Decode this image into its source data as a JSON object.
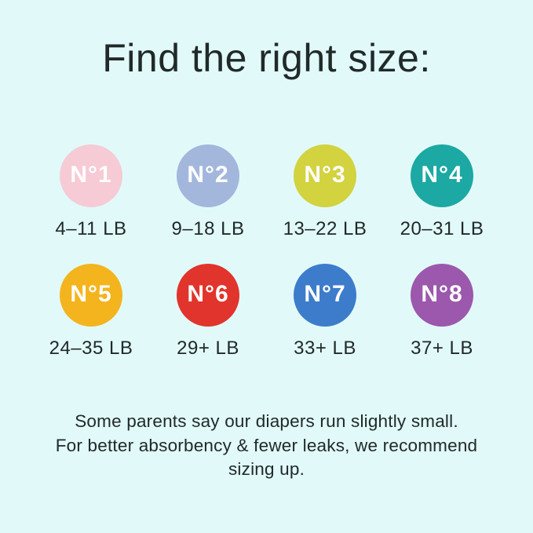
{
  "title": "Find the right size:",
  "sizes": [
    {
      "label": "N°1",
      "weight": "4–11 LB",
      "color": "#f6cbd5"
    },
    {
      "label": "N°2",
      "weight": "9–18 LB",
      "color": "#a3b7dd"
    },
    {
      "label": "N°3",
      "weight": "13–22 LB",
      "color": "#d3d23f"
    },
    {
      "label": "N°4",
      "weight": "20–31 LB",
      "color": "#1ca8a3"
    },
    {
      "label": "N°5",
      "weight": "24–35 LB",
      "color": "#f4b41e"
    },
    {
      "label": "N°6",
      "weight": "29+ LB",
      "color": "#e1342c"
    },
    {
      "label": "N°7",
      "weight": "33+ LB",
      "color": "#3c7cca"
    },
    {
      "label": "N°8",
      "weight": "37+ LB",
      "color": "#9b58ac"
    }
  ],
  "footer": {
    "lines": [
      "Some parents say our diapers run slightly small.",
      "For better absorbency & fewer leaks, we recommend",
      "sizing up."
    ]
  },
  "colors": {
    "background": "#e1faf9",
    "text": "#212929",
    "circle_text": "#ffffff"
  }
}
